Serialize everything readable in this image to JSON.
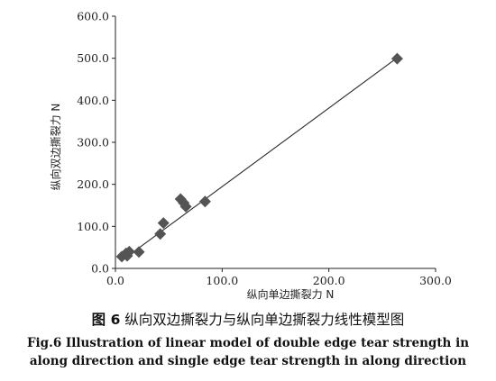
{
  "chart_data": {
    "type": "scatter",
    "xlabel": "纵向单边撕裂力 N",
    "ylabel": "纵向双边撕裂力 N",
    "xlim": [
      0,
      300
    ],
    "ylim": [
      0,
      600
    ],
    "x_ticks": [
      "0.0",
      "100.0",
      "200.0",
      "300.0"
    ],
    "y_ticks": [
      "0.0",
      "100.0",
      "200.0",
      "300.0",
      "400.0",
      "500.0",
      "600.0"
    ],
    "grid": false,
    "marker": "diamond",
    "marker_color": "#545454",
    "line_color": "#2a2a2a",
    "points": [
      {
        "x": 6,
        "y": 28
      },
      {
        "x": 10,
        "y": 36
      },
      {
        "x": 11,
        "y": 30
      },
      {
        "x": 13,
        "y": 40
      },
      {
        "x": 22,
        "y": 39
      },
      {
        "x": 42,
        "y": 82
      },
      {
        "x": 45,
        "y": 108
      },
      {
        "x": 61,
        "y": 165
      },
      {
        "x": 64,
        "y": 156
      },
      {
        "x": 66,
        "y": 147
      },
      {
        "x": 84,
        "y": 159
      },
      {
        "x": 264,
        "y": 499
      }
    ],
    "fit_line": {
      "x": [
        5,
        264
      ],
      "y": [
        17,
        501
      ]
    }
  },
  "caption": {
    "cn_fig_no": "图 6",
    "cn_text": "纵向双边撕裂力与纵向单边撕裂力线性模型图",
    "en_line1": "Fig.6  Illustration of linear model of double edge tear strength in",
    "en_line2": "along direction and single edge tear strength in along direction"
  }
}
